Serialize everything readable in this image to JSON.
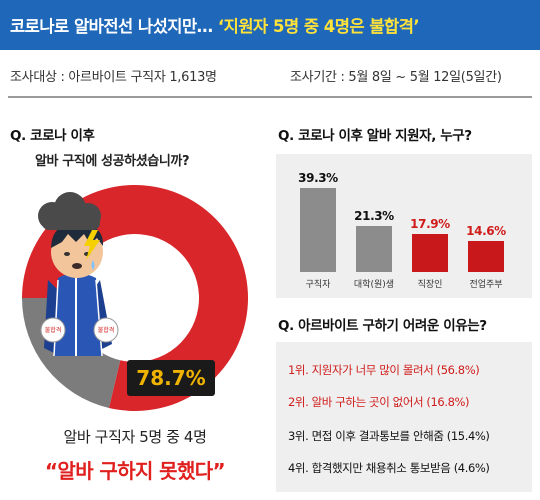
{
  "header": {
    "title_prefix": "코로나로 알바전선 나섰지만… ",
    "title_highlight": "‘지원자 5명 중 4명은 불합격’"
  },
  "survey": {
    "target": "조사대상 : 아르바이트 구직자 1,613명",
    "period": "조사기간 : 5월 8일 ~ 5월 12일(5일간)"
  },
  "left": {
    "question": "Q. 코로나 이후",
    "subquestion": "알바 구직에 성공하셨습니까?",
    "percent_label": "78.7%",
    "summary_line1": "알바 구직자 5명 중 4명",
    "summary_line2": "“알바 구하지 못했다”"
  },
  "right_top": {
    "question": "Q. 코로나 이후 알바 지원자, 누구?"
  },
  "right_bottom": {
    "question": "Q. 아르바이트 구하기 어려운 이유는?",
    "reasons": [
      {
        "text": "1위. 지원자가 너무 많이 몰려서 (56.8%)",
        "highlight": true
      },
      {
        "text": "2위. 알바 구하는 곳이 없어서 (16.8%)",
        "highlight": true
      },
      {
        "text": "3위. 면접 이후 결과통보를 안해줌 (15.4%)",
        "highlight": false
      },
      {
        "text": "4위. 합격했지만 채용취소 통보받음 (4.6%)",
        "highlight": false
      }
    ]
  },
  "colors": {
    "header_bg": "#1f67b8",
    "highlight_yellow": "#ffe23a",
    "accent_red": "#d01c1b",
    "gray_bar": "#8c8c8c",
    "donut_red": "#d8262a",
    "donut_gray": "#7c7c7c"
  },
  "icons": [
    "storm-cloud-icon",
    "lightning-icon",
    "job-seeker-character-icon"
  ],
  "chart_data": [
    {
      "type": "pie",
      "title": "알바 구직에 성공하셨습니까?",
      "categories": [
        "",
        ""
      ],
      "values": [
        78.7,
        21.3
      ],
      "value_labels": [
        "78.7%",
        ""
      ],
      "colors": [
        "#d8262a",
        "#7c7c7c"
      ],
      "donut": true
    },
    {
      "type": "bar",
      "title": "코로나 이후 알바 지원자, 누구?",
      "categories": [
        "구직자",
        "대학(원)생",
        "직장인",
        "전업주부"
      ],
      "values": [
        39.3,
        21.3,
        17.9,
        14.6
      ],
      "value_labels": [
        "39.3%",
        "21.3%",
        "17.9%",
        "14.6%"
      ],
      "colors": [
        "#8c8c8c",
        "#8c8c8c",
        "#c9181b",
        "#c9181b"
      ],
      "ylim": [
        0,
        40
      ],
      "grid": false,
      "legend": "none"
    }
  ]
}
